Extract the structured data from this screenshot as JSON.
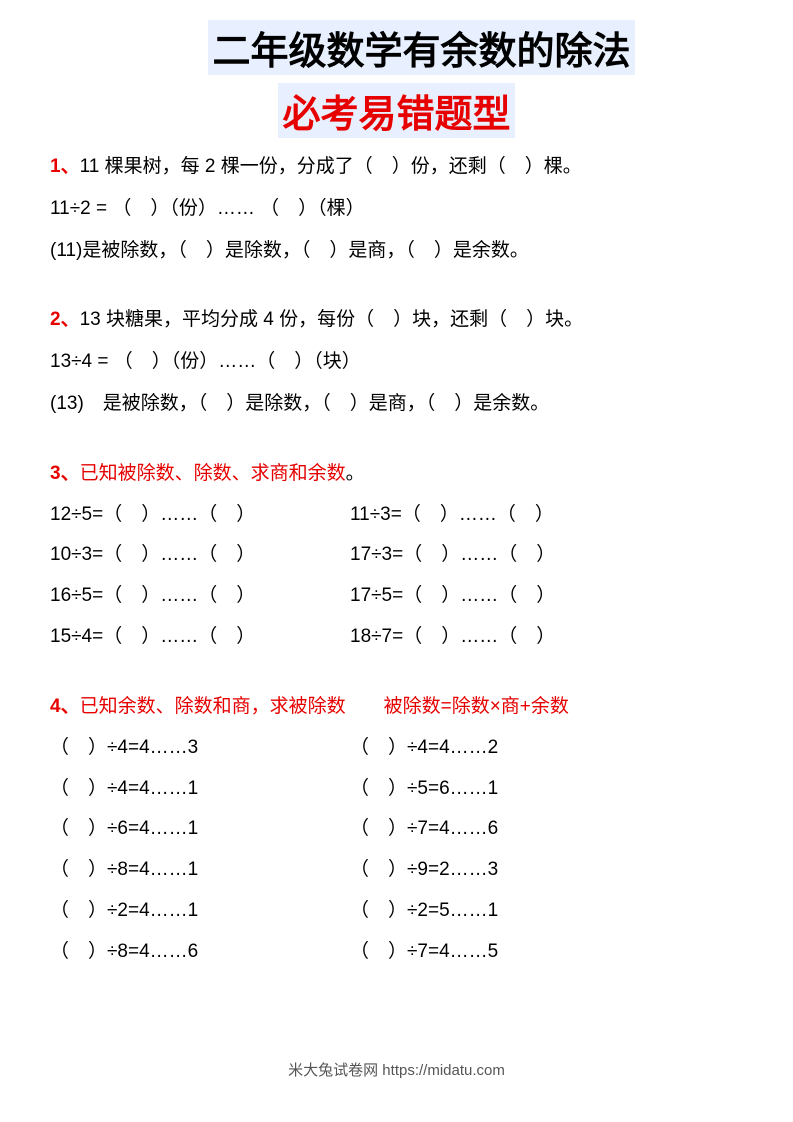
{
  "title": {
    "line1": "二年级数学有余数的除法",
    "line2": "必考易错题型"
  },
  "problems": {
    "p1": {
      "number": "1",
      "separator": "、",
      "line1": "11 棵果树，每 2 棵一份，分成了（　）份，还剩（　）棵。",
      "line2": "11÷2 = （　）（份）…… （　）（棵）",
      "line3": "(11)是被除数，（　）是除数，（　）是商，（　）是余数。"
    },
    "p2": {
      "number": "2",
      "separator": "、",
      "line1": "13 块糖果，平均分成 4 份，每份（　）块，还剩（　）块。",
      "line2": "13÷4 = （　）（份）……（　）（块）",
      "line3": "(13)　是被除数，（　）是除数，（　）是商，（　）是余数。"
    },
    "p3": {
      "number": "3",
      "separator": "、",
      "heading": "已知被除数、除数、求商和余数",
      "dot": "。",
      "rows": [
        {
          "left": "12÷5=（　）……（　）",
          "right": "11÷3=（　）……（　）"
        },
        {
          "left": "10÷3=（　）……（　）",
          "right": "17÷3=（　）……（　）"
        },
        {
          "left": "16÷5=（　）……（　）",
          "right": "17÷5=（　）……（　）"
        },
        {
          "left": "15÷4=（　）……（　）",
          "right": "18÷7=（　）……（　）"
        }
      ]
    },
    "p4": {
      "number": "4",
      "separator": "、",
      "heading": "已知余数、除数和商，求被除数　　被除数=除数×商+余数",
      "rows": [
        {
          "left": "（　）÷4=4……3",
          "right": "（　）÷4=4……2"
        },
        {
          "left": "（　）÷4=4……1",
          "right": "（　）÷5=6……1"
        },
        {
          "left": "（　）÷6=4……1",
          "right": "（　）÷7=4……6"
        },
        {
          "left": "（　）÷8=4……1",
          "right": "（　）÷9=2……3"
        },
        {
          "left": "（　）÷2=4……1",
          "right": "（　）÷2=5……1"
        },
        {
          "left": "（　）÷8=4……6",
          "right": "（　）÷7=4……5"
        }
      ]
    }
  },
  "footer": "米大兔试卷网 https://midatu.com",
  "colors": {
    "red": "#e60000",
    "black": "#000000",
    "title_bg": "#e8f0ff",
    "footer_text": "#555555",
    "background": "#ffffff"
  },
  "typography": {
    "title_fontsize": 38,
    "body_fontsize": 19,
    "footer_fontsize": 15,
    "title_weight": "bold"
  }
}
